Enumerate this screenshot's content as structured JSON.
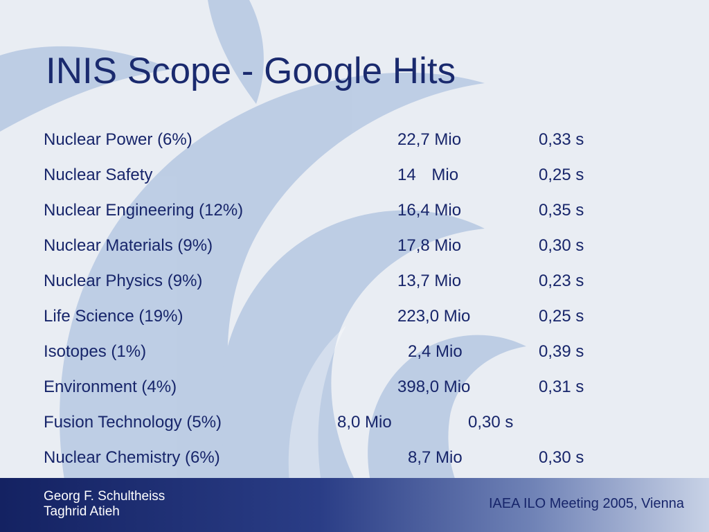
{
  "slide": {
    "title": "INIS Scope - Google Hits",
    "rows": [
      {
        "label": "Nuclear Power (6%)",
        "value": "22,7 Mio",
        "time": "0,33 s"
      },
      {
        "label": "Nuclear Safety",
        "value": "14 Mio",
        "time": "0,25 s"
      },
      {
        "label": "Nuclear Engineering (12%)",
        "value": "16,4 Mio",
        "time": "0,35 s"
      },
      {
        "label": "Nuclear Materials (9%)",
        "value": "17,8 Mio",
        "time": "0,30 s"
      },
      {
        "label": "Nuclear Physics (9%)",
        "value": "13,7 Mio",
        "time": "0,23 s"
      },
      {
        "label": "Life Science (19%)",
        "value": "223,0 Mio",
        "time": "0,25 s"
      },
      {
        "label": "Isotopes (1%)",
        "value": "2,4 Mio",
        "time": "0,39 s"
      },
      {
        "label": "Environment (4%)",
        "value": "398,0 Mio",
        "time": "0,31 s"
      },
      {
        "label": "Fusion Technology (5%)",
        "value": "8,0 Mio",
        "time": "0,30 s"
      },
      {
        "label": "Nuclear Chemistry (6%)",
        "value": "8,7 Mio",
        "time": "0,30 s"
      }
    ]
  },
  "footer": {
    "author_1": "Georg F. Schultheiss",
    "author_2": "Taghrid Atieh",
    "event": "IAEA ILO Meeting 2005, Vienna"
  },
  "colors": {
    "background": "#e9edf3",
    "swirl": "#b9cae3",
    "text": "#17256a",
    "title": "#1a2a6e",
    "footer_band": "#142262"
  },
  "icons": [
    "swirl-logo-background"
  ]
}
